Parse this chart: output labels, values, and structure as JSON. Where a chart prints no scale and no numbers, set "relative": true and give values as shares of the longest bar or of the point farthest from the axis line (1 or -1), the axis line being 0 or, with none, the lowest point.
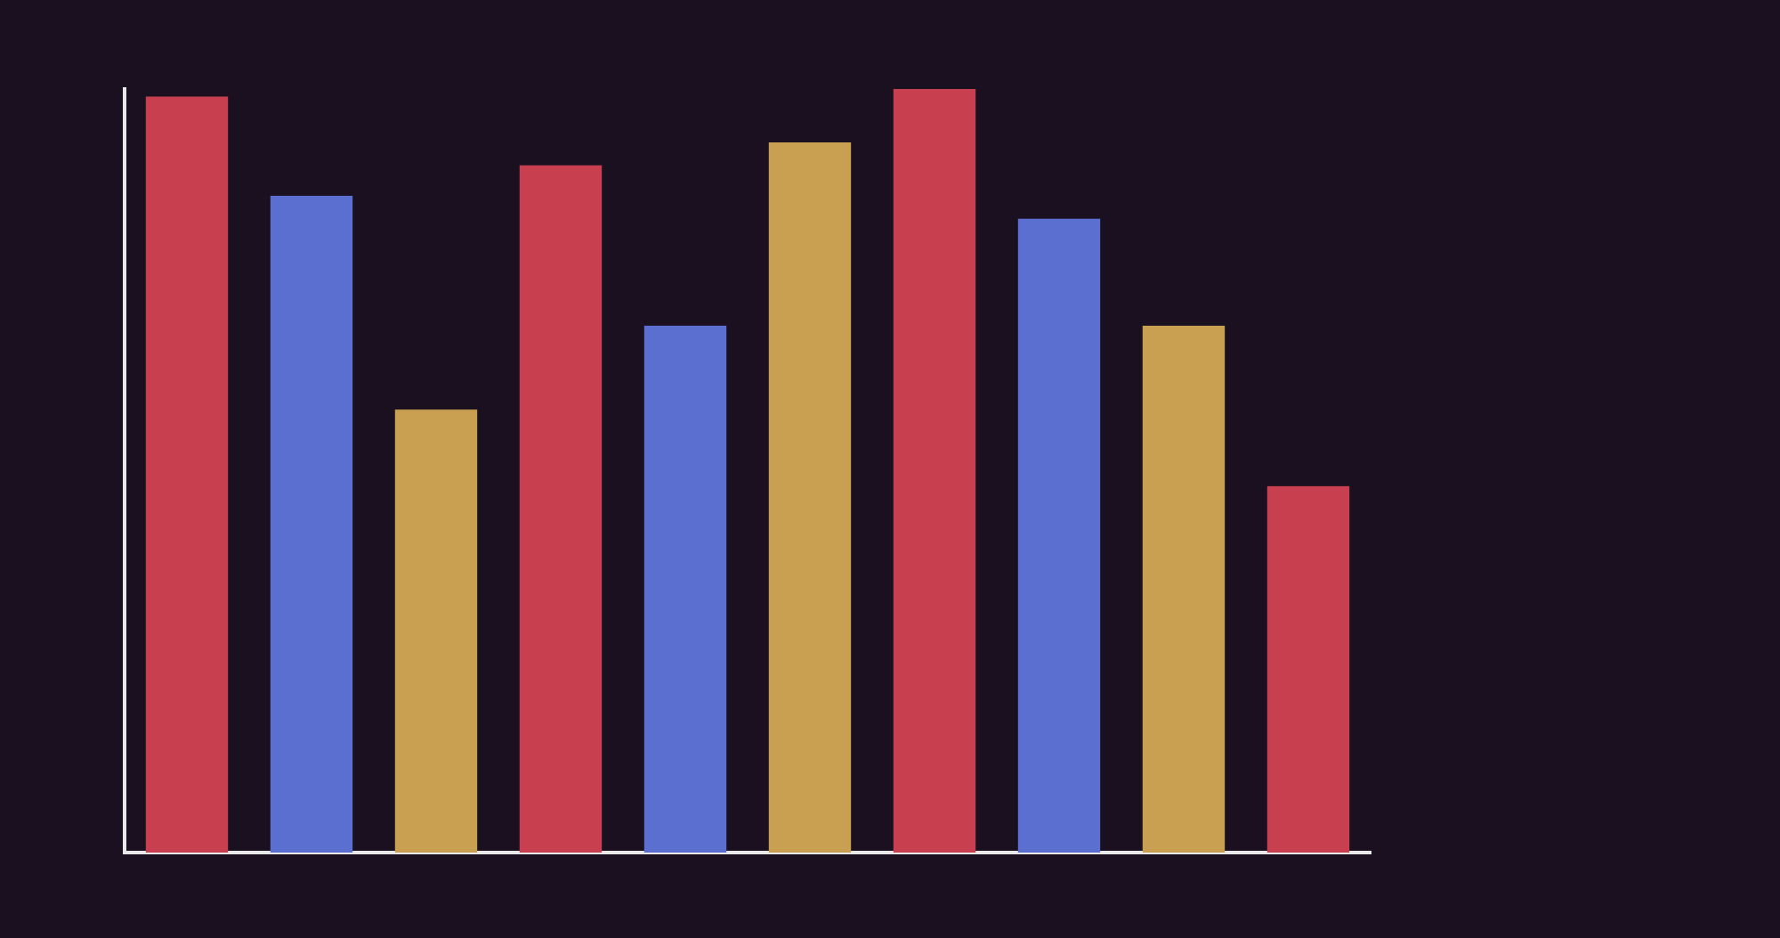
{
  "chart_data": {
    "type": "bar",
    "relative": true,
    "categories": [
      null,
      null,
      null,
      null,
      null,
      null,
      null,
      null,
      null,
      null
    ],
    "values": [
      0.99,
      0.86,
      0.58,
      0.9,
      0.69,
      0.93,
      1,
      0.83,
      0.69,
      0.48
    ],
    "colors": [
      "#c8404f",
      "#5a6fd0",
      "#c9a052",
      "#c8404f",
      "#5a6fd0",
      "#c9a052",
      "#c8404f",
      "#5a6fd0",
      "#c9a052",
      "#c8404f"
    ],
    "grid": false,
    "legend": false
  }
}
